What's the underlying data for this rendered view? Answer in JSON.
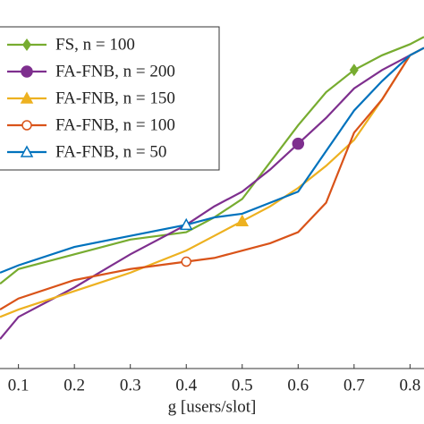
{
  "chart_data": {
    "type": "line",
    "x_label": "g [users/slot]",
    "x": [
      0.067,
      0.1,
      0.2,
      0.3,
      0.4,
      0.45,
      0.5,
      0.55,
      0.6,
      0.65,
      0.7,
      0.75,
      0.8,
      0.825
    ],
    "xlim": [
      0.067,
      0.825
    ],
    "xticks": [
      0.1,
      0.2,
      0.3,
      0.4,
      0.5,
      0.6,
      0.7,
      0.8
    ],
    "ylim": [
      0,
      1
    ],
    "legend": "upper left",
    "series": [
      {
        "name": "FS, n = 100",
        "color": "#77ac30",
        "marker": "diamond",
        "marker_x": 0.7,
        "values": [
          0.23,
          0.27,
          0.31,
          0.35,
          0.37,
          0.41,
          0.46,
          0.56,
          0.66,
          0.75,
          0.81,
          0.85,
          0.88,
          0.9
        ]
      },
      {
        "name": "FA-FNB, n = 200",
        "color": "#7e2f8e",
        "marker": "filled-circle",
        "marker_x": 0.6,
        "values": [
          0.08,
          0.14,
          0.22,
          0.31,
          0.39,
          0.44,
          0.48,
          0.54,
          0.61,
          0.68,
          0.76,
          0.81,
          0.85,
          0.87
        ]
      },
      {
        "name": "FA-FNB, n = 150",
        "color": "#edb120",
        "marker": "filled-triangle",
        "marker_x": 0.5,
        "values": [
          0.14,
          0.16,
          0.21,
          0.26,
          0.32,
          0.36,
          0.4,
          0.44,
          0.49,
          0.55,
          0.62,
          0.73,
          0.85,
          0.87
        ]
      },
      {
        "name": "FA-FNB, n = 100",
        "color": "#d95319",
        "marker": "open-circle",
        "marker_x": 0.4,
        "values": [
          0.16,
          0.19,
          0.24,
          0.27,
          0.29,
          0.3,
          0.32,
          0.34,
          0.37,
          0.45,
          0.64,
          0.73,
          0.85,
          0.87
        ]
      },
      {
        "name": "FA-FNB, n = 50",
        "color": "#0072bd",
        "marker": "open-triangle",
        "marker_x": 0.4,
        "values": [
          0.26,
          0.28,
          0.33,
          0.36,
          0.39,
          0.41,
          0.42,
          0.45,
          0.48,
          0.59,
          0.7,
          0.78,
          0.85,
          0.87
        ]
      }
    ]
  }
}
